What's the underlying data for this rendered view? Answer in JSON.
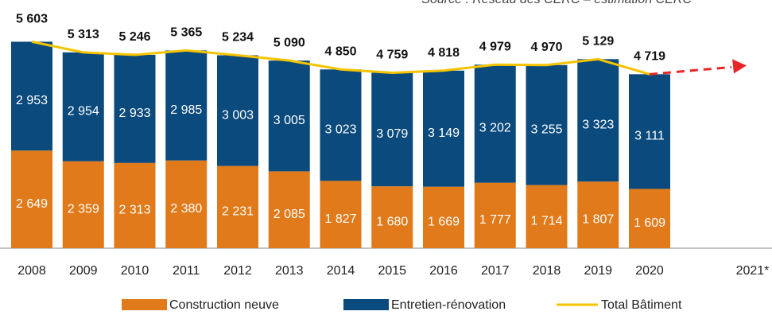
{
  "chart_data": {
    "type": "stacked_bar_line",
    "source": "Source : Réseau des CERC – estimation CERC",
    "categories": [
      "2008",
      "2009",
      "2010",
      "2011",
      "2012",
      "2013",
      "2014",
      "2015",
      "2016",
      "2017",
      "2018",
      "2019",
      "2020",
      null,
      "2021*"
    ],
    "ylim": [
      0,
      6000
    ],
    "series": [
      {
        "name": "Construction neuve",
        "type": "bar",
        "color": "#e07a1a",
        "values": [
          2649,
          2359,
          2313,
          2380,
          2231,
          2085,
          1827,
          1680,
          1669,
          1777,
          1714,
          1807,
          1609,
          null,
          null
        ],
        "value_labels": [
          "2 649",
          "2 359",
          "2 313",
          "2 380",
          "2 231",
          "2 085",
          "1 827",
          "1 680",
          "1 669",
          "1 777",
          "1 714",
          "1 807",
          "1 609",
          null,
          null
        ]
      },
      {
        "name": "Entretien-rénovation",
        "type": "bar",
        "color": "#0b4a7c",
        "values": [
          2953,
          2954,
          2933,
          2985,
          3003,
          3005,
          3023,
          3079,
          3149,
          3202,
          3255,
          3323,
          3111,
          null,
          null
        ],
        "value_labels": [
          "2 953",
          "2 954",
          "2 933",
          "2 985",
          "3 003",
          "3 005",
          "3 023",
          "3 079",
          "3 149",
          "3 202",
          "3 255",
          "3 323",
          "3 111",
          null,
          null
        ]
      },
      {
        "name": "Total Bâtiment",
        "type": "line",
        "color": "#f5c400",
        "values": [
          5603,
          5313,
          5246,
          5365,
          5234,
          5090,
          4850,
          4759,
          4818,
          4979,
          4970,
          5129,
          4719,
          null,
          null
        ],
        "value_labels": [
          "5 603",
          "5 313",
          "5 246",
          "5 365",
          "5 234",
          "5 090",
          "4 850",
          "4 759",
          "4 818",
          "4 979",
          "4 970",
          "5 129",
          "4 719",
          null,
          null
        ]
      }
    ]
  }
}
